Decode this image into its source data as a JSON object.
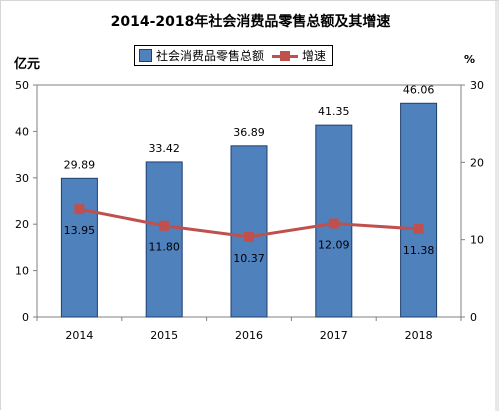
{
  "chart_data": {
    "type": "bar+line",
    "title": "2014-2018年社会消费品零售总额及其增速",
    "categories": [
      "2014",
      "2015",
      "2016",
      "2017",
      "2018"
    ],
    "series": [
      {
        "name": "社会消费品零售总额",
        "type": "bar",
        "axis": "left",
        "values": [
          29.89,
          33.42,
          36.89,
          41.35,
          46.06
        ],
        "color": "#4f81bd"
      },
      {
        "name": "增速",
        "type": "line",
        "axis": "right",
        "values": [
          13.95,
          11.8,
          10.37,
          12.09,
          11.38
        ],
        "color": "#c0504d"
      }
    ],
    "value_labels": {
      "bars": [
        "29.89",
        "33.42",
        "36.89",
        "41.35",
        "46.06"
      ],
      "line": [
        "13.95",
        "11.80",
        "10.37",
        "12.09",
        "11.38"
      ]
    },
    "left_axis": {
      "unit": "亿元",
      "ylim": [
        0,
        50
      ],
      "ticks": [
        "0",
        "10",
        "20",
        "30",
        "40",
        "50"
      ]
    },
    "right_axis": {
      "unit": "%",
      "ylim": [
        0,
        30
      ],
      "ticks": [
        "0",
        "10",
        "20",
        "30"
      ]
    },
    "legend_position": "top-center",
    "grid": false
  }
}
